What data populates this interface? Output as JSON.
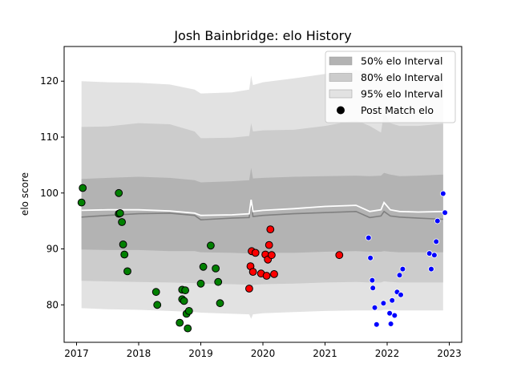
{
  "chart_data": {
    "type": "scatter",
    "title": "Josh Bainbridge: elo History",
    "xlabel": "",
    "ylabel": "elo score",
    "xlim": [
      2016.8,
      2023.2
    ],
    "ylim": [
      73.3,
      126.2
    ],
    "x_ticks": [
      2017,
      2018,
      2019,
      2020,
      2021,
      2022,
      2023
    ],
    "x_tick_labels": [
      "2017",
      "2018",
      "2019",
      "2020",
      "2021",
      "2022",
      "2023"
    ],
    "y_ticks": [
      80,
      90,
      100,
      110,
      120
    ],
    "y_tick_labels": [
      "80",
      "90",
      "100",
      "110",
      "120"
    ],
    "grid": false,
    "legend_position": "top-right",
    "legend": [
      {
        "label": "50% elo Interval",
        "kind": "band",
        "color": "#b3b3b3"
      },
      {
        "label": "80% elo Interval",
        "kind": "band",
        "color": "#cccccc"
      },
      {
        "label": "95% elo Interval",
        "kind": "band",
        "color": "#e2e2e2"
      },
      {
        "label": "Post Match elo",
        "kind": "marker",
        "color": "#000000"
      }
    ],
    "bands": {
      "x": [
        2017.08,
        2017.5,
        2018.0,
        2018.5,
        2018.9,
        2019.0,
        2019.5,
        2019.78,
        2019.81,
        2019.84,
        2020.0,
        2020.5,
        2021.0,
        2021.5,
        2021.72,
        2021.9,
        2021.95,
        2022.05,
        2022.2,
        2022.5,
        2022.9
      ],
      "lo95": [
        79.4,
        79.2,
        79.1,
        78.9,
        78.7,
        78.6,
        78.4,
        78.3,
        77.5,
        78.3,
        78.5,
        78.7,
        78.9,
        79.0,
        79.0,
        79.0,
        79.1,
        79.1,
        79.0,
        79.0,
        79.0
      ],
      "lo80": [
        84.3,
        84.2,
        84.1,
        84.0,
        83.9,
        83.8,
        83.7,
        83.6,
        83.0,
        83.6,
        83.7,
        83.8,
        84.0,
        84.1,
        84.0,
        84.0,
        84.2,
        84.1,
        84.0,
        84.0,
        84.0
      ],
      "lo50": [
        89.9,
        89.8,
        89.8,
        89.6,
        89.6,
        89.4,
        89.3,
        89.2,
        88.8,
        89.2,
        89.3,
        89.3,
        89.5,
        89.6,
        89.5,
        89.5,
        89.6,
        89.5,
        89.4,
        89.4,
        89.4
      ],
      "hi50": [
        102.5,
        102.7,
        102.9,
        102.7,
        102.3,
        101.9,
        102.1,
        102.3,
        104.5,
        102.6,
        102.7,
        102.9,
        103.0,
        103.1,
        103.0,
        103.1,
        103.6,
        103.3,
        103.0,
        103.1,
        103.3
      ],
      "hi80": [
        111.8,
        111.9,
        112.5,
        112.3,
        111.0,
        109.8,
        109.9,
        110.2,
        112.5,
        111.0,
        111.2,
        111.3,
        112.0,
        113.0,
        112.0,
        110.8,
        114.4,
        112.5,
        112.0,
        112.0,
        112.4
      ],
      "hi95": [
        120.0,
        119.8,
        119.7,
        119.4,
        118.5,
        117.8,
        118.0,
        118.5,
        121.0,
        119.3,
        119.8,
        120.5,
        121.3,
        122.0,
        121.6,
        121.2,
        121.0,
        121.2,
        121.0,
        121.0,
        121.0
      ],
      "median": [
        95.7,
        96.0,
        96.3,
        96.4,
        96.0,
        95.2,
        95.5,
        95.6,
        98.2,
        95.8,
        96.0,
        96.3,
        96.5,
        96.7,
        95.6,
        95.9,
        96.7,
        95.9,
        95.7,
        95.5,
        95.3
      ],
      "mean": [
        96.9,
        97.0,
        97.0,
        96.8,
        96.4,
        96.0,
        96.1,
        96.3,
        98.8,
        96.7,
        96.9,
        97.2,
        97.6,
        97.8,
        96.7,
        97.0,
        98.3,
        97.0,
        96.7,
        96.6,
        96.7
      ]
    },
    "series": [
      {
        "color": "#008000",
        "points": [
          [
            2017.08,
            98.3
          ],
          [
            2017.1,
            100.9
          ],
          [
            2017.68,
            100.0
          ],
          [
            2017.68,
            96.3
          ],
          [
            2017.7,
            96.4
          ],
          [
            2017.73,
            94.8
          ],
          [
            2017.75,
            90.8
          ],
          [
            2017.77,
            89.0
          ],
          [
            2017.82,
            86.0
          ],
          [
            2018.28,
            82.3
          ],
          [
            2018.3,
            80.0
          ],
          [
            2018.66,
            76.8
          ],
          [
            2018.7,
            81.0
          ],
          [
            2018.7,
            82.7
          ],
          [
            2018.73,
            80.7
          ],
          [
            2018.75,
            82.6
          ],
          [
            2018.77,
            78.4
          ],
          [
            2018.79,
            75.8
          ],
          [
            2018.81,
            78.9
          ],
          [
            2019.0,
            83.8
          ],
          [
            2019.04,
            86.8
          ],
          [
            2019.16,
            90.6
          ],
          [
            2019.24,
            86.5
          ],
          [
            2019.28,
            84.1
          ],
          [
            2019.31,
            80.3
          ]
        ]
      },
      {
        "color": "#ff0000",
        "points": [
          [
            2019.78,
            82.9
          ],
          [
            2019.8,
            86.9
          ],
          [
            2019.82,
            89.6
          ],
          [
            2019.84,
            85.9
          ],
          [
            2019.88,
            89.3
          ],
          [
            2019.97,
            85.6
          ],
          [
            2020.04,
            89.0
          ],
          [
            2020.06,
            85.2
          ],
          [
            2020.08,
            88.1
          ],
          [
            2020.1,
            90.7
          ],
          [
            2020.12,
            93.5
          ],
          [
            2020.14,
            88.9
          ],
          [
            2020.18,
            85.5
          ],
          [
            2021.23,
            88.9
          ]
        ]
      },
      {
        "color": "#0000ff",
        "points": [
          [
            2021.7,
            92.0
          ],
          [
            2021.73,
            88.4
          ],
          [
            2021.76,
            84.4
          ],
          [
            2021.77,
            83.0
          ],
          [
            2021.8,
            79.5
          ],
          [
            2021.83,
            76.5
          ],
          [
            2021.94,
            80.3
          ],
          [
            2022.04,
            78.5
          ],
          [
            2022.06,
            76.6
          ],
          [
            2022.08,
            80.8
          ],
          [
            2022.12,
            78.1
          ],
          [
            2022.16,
            82.3
          ],
          [
            2022.2,
            85.3
          ],
          [
            2022.22,
            81.8
          ],
          [
            2022.25,
            86.4
          ],
          [
            2022.68,
            89.2
          ],
          [
            2022.71,
            86.4
          ],
          [
            2022.76,
            88.9
          ],
          [
            2022.79,
            91.3
          ],
          [
            2022.81,
            95.0
          ],
          [
            2022.9,
            99.9
          ],
          [
            2022.93,
            96.5
          ]
        ]
      }
    ]
  }
}
